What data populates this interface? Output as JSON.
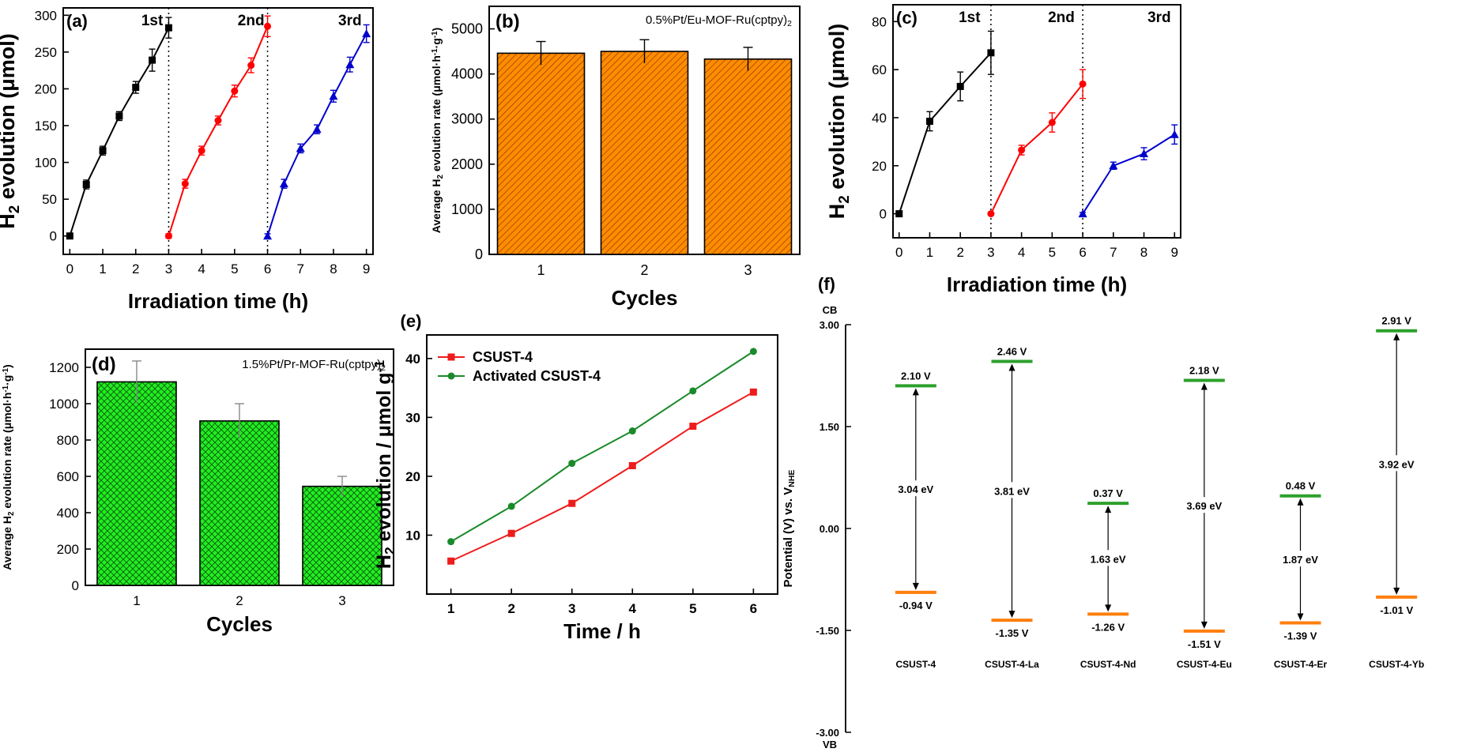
{
  "chart_data": [
    {
      "panel": "(a)",
      "type": "line",
      "xlabel": "Irradiation time (h)",
      "ylabel": "H2 evolution (μmol)",
      "xlim": [
        -0.2,
        9.2
      ],
      "ylim": [
        -25,
        310
      ],
      "xticks": [
        0,
        1,
        2,
        3,
        4,
        5,
        6,
        7,
        8,
        9
      ],
      "yticks": [
        0,
        50,
        100,
        150,
        200,
        250,
        300
      ],
      "cycle_labels": [
        {
          "x": 2.5,
          "text": "1st"
        },
        {
          "x": 5.5,
          "text": "2nd"
        },
        {
          "x": 8.5,
          "text": "3rd"
        }
      ],
      "dividers": [
        3,
        6
      ],
      "series": [
        {
          "color": "#000000",
          "marker": "square",
          "x": [
            0,
            0.5,
            1,
            1.5,
            2,
            2.5,
            3
          ],
          "y": [
            0,
            70,
            116,
            163,
            202,
            239,
            283
          ],
          "err": [
            3,
            6,
            6,
            6,
            8,
            15,
            14
          ]
        },
        {
          "color": "#ff0000",
          "marker": "circle",
          "x": [
            3,
            3.5,
            4,
            4.5,
            5,
            5.5,
            6
          ],
          "y": [
            0,
            71,
            116,
            157,
            197,
            232,
            285
          ],
          "err": [
            3,
            6,
            6,
            6,
            8,
            10,
            14
          ]
        },
        {
          "color": "#0000cc",
          "marker": "triangle",
          "x": [
            6,
            6.5,
            7,
            7.5,
            8,
            8.5,
            9
          ],
          "y": [
            0,
            71,
            119,
            145,
            190,
            233,
            275
          ],
          "err": [
            3,
            6,
            6,
            6,
            8,
            10,
            12
          ]
        }
      ]
    },
    {
      "panel": "(b)",
      "type": "bar",
      "annotation": "0.5%Pt/Eu-MOF-Ru(cptpy)2",
      "xlabel": "Cycles",
      "ylabel": "Average H2 evolution rate (μmol·h-1·g-1)",
      "categories": [
        "1",
        "2",
        "3"
      ],
      "values": [
        4460,
        4500,
        4330
      ],
      "err": [
        260,
        260,
        260
      ],
      "ylim": [
        0,
        5500
      ],
      "yticks": [
        0,
        1000,
        2000,
        3000,
        4000,
        5000
      ],
      "color": "#ff8c00",
      "pattern": "diagonal-hatch"
    },
    {
      "panel": "(c)",
      "type": "line",
      "xlabel": "Irradiation time (h)",
      "ylabel": "H2 evolution (μmol)",
      "xlim": [
        -0.2,
        9.2
      ],
      "ylim": [
        -10,
        87
      ],
      "xticks": [
        0,
        1,
        2,
        3,
        4,
        5,
        6,
        7,
        8,
        9
      ],
      "yticks": [
        0,
        20,
        40,
        60,
        80
      ],
      "cycle_labels": [
        {
          "x": 2.3,
          "text": "1st"
        },
        {
          "x": 5.3,
          "text": "2nd"
        },
        {
          "x": 8.5,
          "text": "3rd"
        }
      ],
      "dividers": [
        3,
        6
      ],
      "series": [
        {
          "color": "#000000",
          "marker": "square",
          "x": [
            0,
            1,
            2,
            3
          ],
          "y": [
            0,
            38.5,
            53,
            67
          ],
          "err": [
            0.5,
            4,
            6,
            9
          ]
        },
        {
          "color": "#ff0000",
          "marker": "circle",
          "x": [
            3,
            4,
            5,
            6
          ],
          "y": [
            0,
            26.5,
            38,
            54
          ],
          "err": [
            0.5,
            2,
            4,
            6
          ]
        },
        {
          "color": "#0000cc",
          "marker": "triangle",
          "x": [
            6,
            7,
            8,
            9
          ],
          "y": [
            0,
            20,
            25,
            33
          ],
          "err": [
            0.5,
            1.5,
            2.5,
            4
          ]
        }
      ]
    },
    {
      "panel": "(d)",
      "type": "bar",
      "annotation": "1.5%Pt/Pr-MOF-Ru(cptpy)2",
      "xlabel": "Cycles",
      "ylabel": "Average H2 evolution rate (μmol·h-1·g-1)",
      "categories": [
        "1",
        "2",
        "3"
      ],
      "values": [
        1120,
        905,
        545
      ],
      "err": [
        115,
        95,
        55
      ],
      "ylim": [
        0,
        1300
      ],
      "yticks": [
        0,
        200,
        400,
        600,
        800,
        1000,
        1200
      ],
      "color": "#00ff00",
      "pattern": "crosshatch"
    },
    {
      "panel": "(e)",
      "type": "line",
      "xlabel": "Time / h",
      "ylabel": "H2 evolution / μmol g-1",
      "xlim": [
        0.6,
        6.4
      ],
      "ylim": [
        0,
        44
      ],
      "xticks": [
        1,
        2,
        3,
        4,
        5,
        6
      ],
      "yticks": [
        10,
        20,
        30,
        40
      ],
      "legend": "top-left",
      "series": [
        {
          "name": "CSUST-4",
          "color": "#ee1c1c",
          "marker": "square",
          "x": [
            1,
            2,
            3,
            4,
            5,
            6
          ],
          "y": [
            5.6,
            10.3,
            15.4,
            21.8,
            28.5,
            34.3
          ]
        },
        {
          "name": "Activated CSUST-4",
          "color": "#1a8a2a",
          "marker": "circle",
          "x": [
            1,
            2,
            3,
            4,
            5,
            6
          ],
          "y": [
            8.9,
            14.9,
            22.2,
            27.7,
            34.5,
            41.2
          ]
        }
      ]
    },
    {
      "panel": "(f)",
      "type": "band-diagram",
      "ylabel": "Potential (V) vs. VNHE",
      "top_label": "CB",
      "bottom_label": "VB",
      "ylim": [
        -3.0,
        3.0
      ],
      "yticks": [
        "3.00",
        "1.50",
        "0.00",
        "-1.50",
        "-3.00"
      ],
      "materials": [
        {
          "name": "CSUST-4",
          "upper": 2.1,
          "upper_label": "2.10 V",
          "lower": -0.94,
          "lower_label": "-0.94 V",
          "gap": "3.04 eV"
        },
        {
          "name": "CSUST-4-La",
          "upper": 2.46,
          "upper_label": "2.46 V",
          "lower": -1.35,
          "lower_label": "-1.35 V",
          "gap": "3.81 eV"
        },
        {
          "name": "CSUST-4-Nd",
          "upper": 0.37,
          "upper_label": "0.37 V",
          "lower": -1.26,
          "lower_label": "-1.26 V",
          "gap": "1.63 eV"
        },
        {
          "name": "CSUST-4-Eu",
          "upper": 2.18,
          "upper_label": "2.18 V",
          "lower": -1.51,
          "lower_label": "-1.51 V",
          "gap": "3.69 eV"
        },
        {
          "name": "CSUST-4-Er",
          "upper": 0.48,
          "upper_label": "0.48 V",
          "lower": -1.39,
          "lower_label": "-1.39 V",
          "gap": "1.87 eV"
        },
        {
          "name": "CSUST-4-Yb",
          "upper": 2.91,
          "upper_label": "2.91 V",
          "lower": -1.01,
          "lower_label": "-1.01 V",
          "gap": "3.92 eV"
        }
      ],
      "colors": {
        "upper": "#2ca02c",
        "lower": "#ff7f0e"
      }
    }
  ]
}
